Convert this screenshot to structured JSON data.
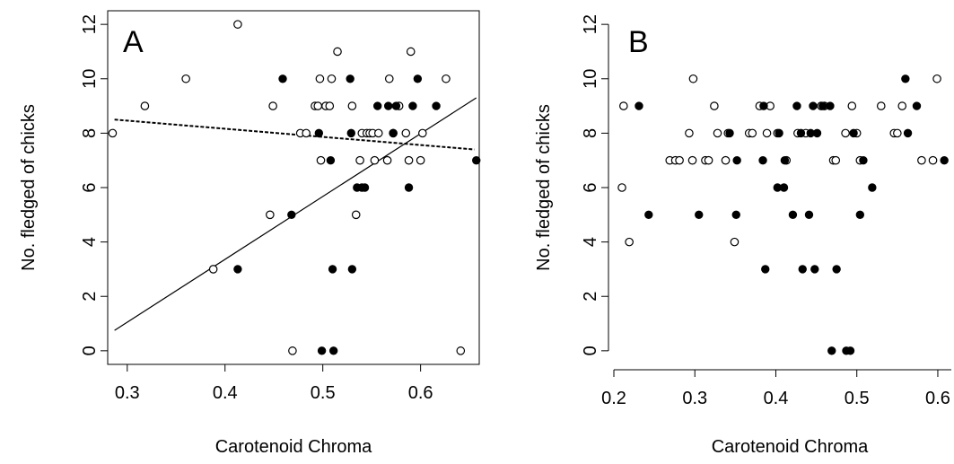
{
  "chart_data": [
    {
      "type": "scatter",
      "panel_label": "A",
      "xlabel": "Carotenoid Chroma",
      "ylabel": "No. fledged of chicks",
      "xlim": [
        0.28,
        0.66
      ],
      "ylim": [
        -0.5,
        12.5
      ],
      "xticks": [
        "0.3",
        "0.4",
        "0.5",
        "0.6"
      ],
      "yticks": [
        "0",
        "2",
        "4",
        "6",
        "8",
        "10",
        "12"
      ],
      "series": [
        {
          "marker": "open",
          "points": [
            [
              0.285,
              8
            ],
            [
              0.318,
              9
            ],
            [
              0.36,
              10
            ],
            [
              0.388,
              3
            ],
            [
              0.413,
              12
            ],
            [
              0.446,
              5
            ],
            [
              0.449,
              9
            ],
            [
              0.469,
              0
            ],
            [
              0.477,
              8
            ],
            [
              0.483,
              8
            ],
            [
              0.492,
              9
            ],
            [
              0.495,
              9
            ],
            [
              0.497,
              10
            ],
            [
              0.498,
              7
            ],
            [
              0.503,
              9
            ],
            [
              0.507,
              9
            ],
            [
              0.509,
              10
            ],
            [
              0.515,
              11
            ],
            [
              0.53,
              9
            ],
            [
              0.534,
              5
            ],
            [
              0.538,
              7
            ],
            [
              0.54,
              8
            ],
            [
              0.545,
              8
            ],
            [
              0.548,
              8
            ],
            [
              0.551,
              8
            ],
            [
              0.553,
              7
            ],
            [
              0.557,
              8
            ],
            [
              0.566,
              7
            ],
            [
              0.568,
              10
            ],
            [
              0.572,
              8
            ],
            [
              0.578,
              9
            ],
            [
              0.585,
              8
            ],
            [
              0.588,
              7
            ],
            [
              0.59,
              11
            ],
            [
              0.6,
              7
            ],
            [
              0.602,
              8
            ],
            [
              0.626,
              10
            ],
            [
              0.641,
              0
            ]
          ]
        },
        {
          "marker": "filled",
          "points": [
            [
              0.413,
              3
            ],
            [
              0.459,
              10
            ],
            [
              0.468,
              5
            ],
            [
              0.496,
              8
            ],
            [
              0.499,
              0
            ],
            [
              0.508,
              7
            ],
            [
              0.51,
              3
            ],
            [
              0.511,
              0
            ],
            [
              0.528,
              10
            ],
            [
              0.529,
              8
            ],
            [
              0.53,
              3
            ],
            [
              0.535,
              6
            ],
            [
              0.54,
              6
            ],
            [
              0.543,
              6
            ],
            [
              0.556,
              9
            ],
            [
              0.567,
              9
            ],
            [
              0.572,
              8
            ],
            [
              0.575,
              9
            ],
            [
              0.588,
              6
            ],
            [
              0.592,
              9
            ],
            [
              0.597,
              10
            ],
            [
              0.616,
              9
            ],
            [
              0.657,
              7
            ]
          ]
        }
      ],
      "lines": [
        {
          "style": "solid",
          "from": [
            0.287,
            0.75
          ],
          "to": [
            0.657,
            9.3
          ]
        },
        {
          "style": "dashed",
          "from": [
            0.287,
            8.5
          ],
          "to": [
            0.655,
            7.4
          ]
        }
      ]
    },
    {
      "type": "scatter",
      "panel_label": "B",
      "xlabel": "Carotenoid Chroma",
      "ylabel": "No. fledged of chicks",
      "xlim": [
        0.2,
        0.62
      ],
      "ylim": [
        -0.5,
        12.5
      ],
      "xticks": [
        "0.2",
        "0.3",
        "0.4",
        "0.5",
        "0.6"
      ],
      "yticks": [
        "0",
        "2",
        "4",
        "6",
        "8",
        "10",
        "12"
      ],
      "series": [
        {
          "marker": "open",
          "points": [
            [
              0.21,
              6
            ],
            [
              0.212,
              9
            ],
            [
              0.219,
              4
            ],
            [
              0.269,
              7
            ],
            [
              0.276,
              7
            ],
            [
              0.281,
              7
            ],
            [
              0.293,
              8
            ],
            [
              0.297,
              7
            ],
            [
              0.298,
              10
            ],
            [
              0.313,
              7
            ],
            [
              0.317,
              7
            ],
            [
              0.324,
              9
            ],
            [
              0.328,
              8
            ],
            [
              0.338,
              7
            ],
            [
              0.341,
              8
            ],
            [
              0.349,
              4
            ],
            [
              0.367,
              8
            ],
            [
              0.371,
              8
            ],
            [
              0.38,
              9
            ],
            [
              0.389,
              8
            ],
            [
              0.393,
              9
            ],
            [
              0.402,
              8
            ],
            [
              0.413,
              7
            ],
            [
              0.427,
              8
            ],
            [
              0.437,
              8
            ],
            [
              0.456,
              9
            ],
            [
              0.46,
              9
            ],
            [
              0.471,
              7
            ],
            [
              0.474,
              7
            ],
            [
              0.486,
              8
            ],
            [
              0.494,
              9
            ],
            [
              0.5,
              8
            ],
            [
              0.504,
              7
            ],
            [
              0.53,
              9
            ],
            [
              0.546,
              8
            ],
            [
              0.55,
              8
            ],
            [
              0.556,
              9
            ],
            [
              0.58,
              7
            ],
            [
              0.594,
              7
            ],
            [
              0.599,
              10
            ]
          ]
        },
        {
          "marker": "filled",
          "points": [
            [
              0.231,
              9
            ],
            [
              0.243,
              5
            ],
            [
              0.305,
              5
            ],
            [
              0.343,
              8
            ],
            [
              0.351,
              5
            ],
            [
              0.352,
              7
            ],
            [
              0.384,
              7
            ],
            [
              0.385,
              9
            ],
            [
              0.387,
              3
            ],
            [
              0.402,
              6
            ],
            [
              0.404,
              8
            ],
            [
              0.41,
              6
            ],
            [
              0.411,
              7
            ],
            [
              0.421,
              5
            ],
            [
              0.426,
              9
            ],
            [
              0.431,
              8
            ],
            [
              0.433,
              3
            ],
            [
              0.441,
              5
            ],
            [
              0.443,
              8
            ],
            [
              0.446,
              9
            ],
            [
              0.448,
              3
            ],
            [
              0.451,
              8
            ],
            [
              0.458,
              9
            ],
            [
              0.467,
              9
            ],
            [
              0.469,
              0
            ],
            [
              0.475,
              3
            ],
            [
              0.487,
              0
            ],
            [
              0.492,
              0
            ],
            [
              0.496,
              8
            ],
            [
              0.504,
              5
            ],
            [
              0.508,
              7
            ],
            [
              0.519,
              6
            ],
            [
              0.56,
              10
            ],
            [
              0.563,
              8
            ],
            [
              0.574,
              9
            ],
            [
              0.608,
              7
            ]
          ]
        }
      ],
      "lines": []
    }
  ]
}
